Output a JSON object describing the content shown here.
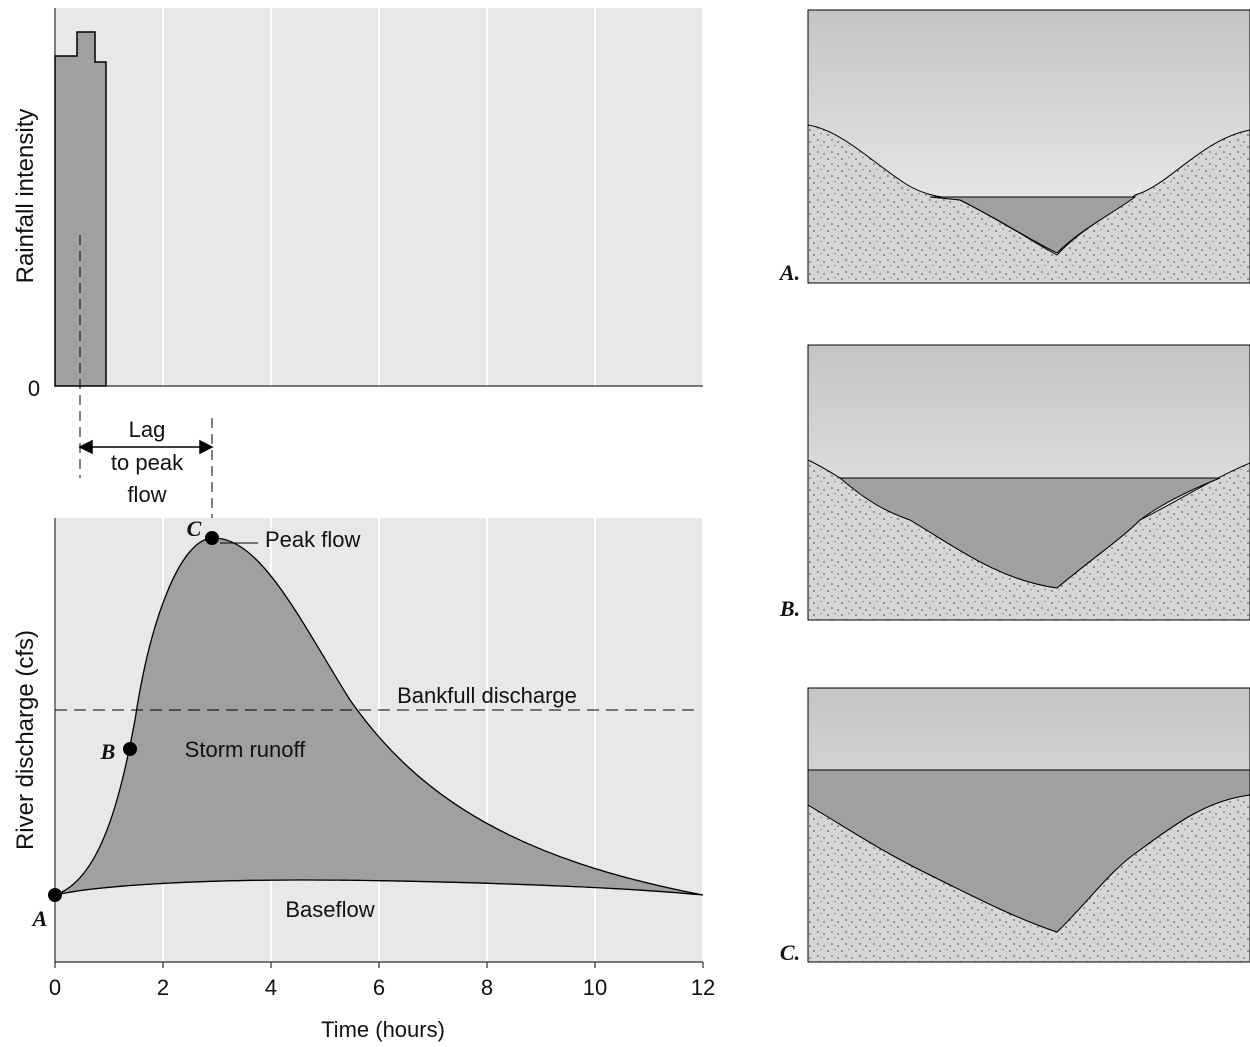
{
  "rainfall_chart": {
    "y_label": "Rainfall intensity",
    "y_zero": "0"
  },
  "lag_label": [
    "Lag",
    "to peak",
    "flow"
  ],
  "discharge_chart": {
    "y_label": "River discharge (cfs)",
    "x_label": "Time (hours)",
    "xlim": [
      0,
      12
    ],
    "xticks": [
      0,
      2,
      4,
      6,
      8,
      10,
      12
    ],
    "points": [
      "A",
      "B",
      "C"
    ],
    "annotations": {
      "peak": "Peak flow",
      "bankfull": "Bankfull discharge",
      "runoff": "Storm runoff",
      "baseflow": "Baseflow"
    }
  },
  "cross_sections": [
    {
      "label": "A."
    },
    {
      "label": "B."
    },
    {
      "label": "C."
    }
  ]
}
